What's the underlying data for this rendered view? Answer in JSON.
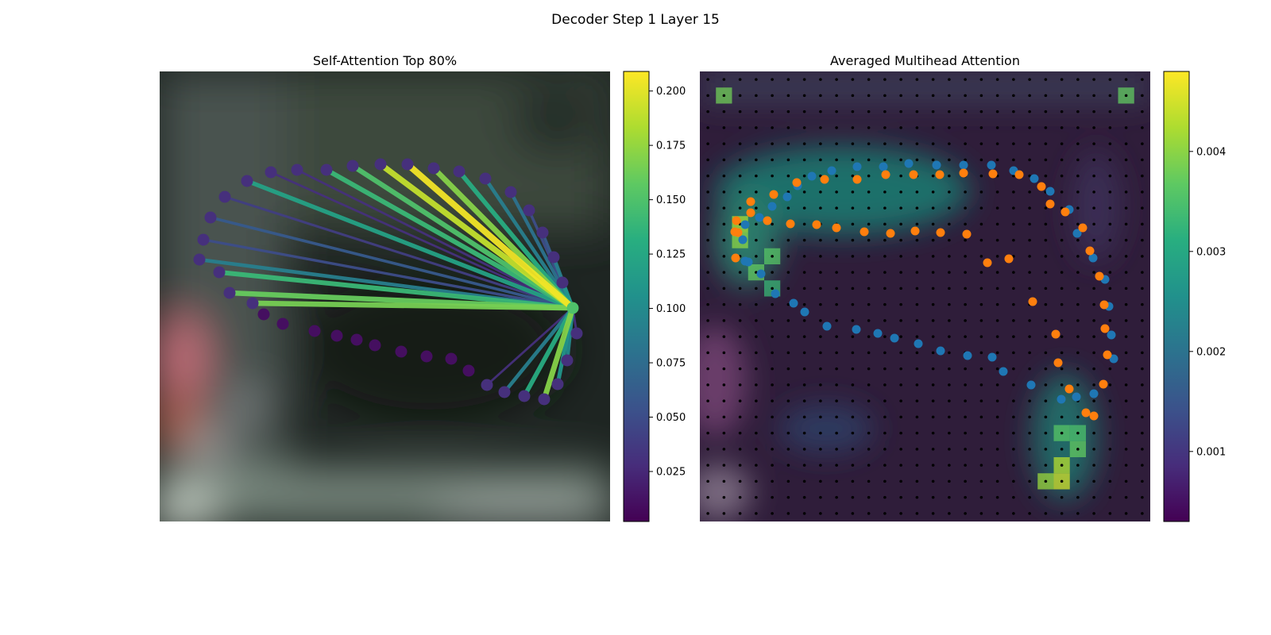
{
  "figure_title": "Decoder Step 1 Layer 15",
  "chart_data": [
    {
      "type": "network",
      "title": "Self-Attention Top 80%",
      "colorbar": {
        "colormap": "viridis",
        "range": [
          0.002,
          0.209
        ],
        "ticks": [
          0.025,
          0.05,
          0.075,
          0.1,
          0.125,
          0.15,
          0.175,
          0.2
        ],
        "tick_labels": [
          "0.025",
          "0.050",
          "0.075",
          "0.100",
          "0.125",
          "0.150",
          "0.175",
          "0.200"
        ]
      },
      "xlim": [
        0,
        567
      ],
      "ylim": [
        567,
        0
      ],
      "query_point": {
        "x": 520,
        "y": 298,
        "value": 0.15
      },
      "points": [
        {
          "x": 82,
          "y": 158,
          "weight": 0.04
        },
        {
          "x": 110,
          "y": 138,
          "weight": 0.12
        },
        {
          "x": 140,
          "y": 127,
          "weight": 0.03
        },
        {
          "x": 173,
          "y": 124,
          "weight": 0.03
        },
        {
          "x": 210,
          "y": 124,
          "weight": 0.14
        },
        {
          "x": 243,
          "y": 119,
          "weight": 0.15
        },
        {
          "x": 278,
          "y": 117,
          "weight": 0.19
        },
        {
          "x": 312,
          "y": 117,
          "weight": 0.205
        },
        {
          "x": 345,
          "y": 122,
          "weight": 0.17
        },
        {
          "x": 377,
          "y": 126,
          "weight": 0.13
        },
        {
          "x": 410,
          "y": 135,
          "weight": 0.09
        },
        {
          "x": 442,
          "y": 152,
          "weight": 0.08
        },
        {
          "x": 465,
          "y": 175,
          "weight": 0.05
        },
        {
          "x": 482,
          "y": 203,
          "weight": 0.06
        },
        {
          "x": 496,
          "y": 234,
          "weight": 0.09
        },
        {
          "x": 507,
          "y": 266,
          "weight": 0.11
        },
        {
          "x": 525,
          "y": 330,
          "weight": 0.03
        },
        {
          "x": 513,
          "y": 364,
          "weight": 0.1
        },
        {
          "x": 501,
          "y": 394,
          "weight": 0.11
        },
        {
          "x": 484,
          "y": 413,
          "weight": 0.17
        },
        {
          "x": 459,
          "y": 409,
          "weight": 0.13
        },
        {
          "x": 434,
          "y": 404,
          "weight": 0.09
        },
        {
          "x": 412,
          "y": 395,
          "weight": 0.03
        },
        {
          "x": 389,
          "y": 377,
          "weight": 0.01
        },
        {
          "x": 367,
          "y": 362,
          "weight": 0.01
        },
        {
          "x": 336,
          "y": 359,
          "weight": 0.01
        },
        {
          "x": 304,
          "y": 353,
          "weight": 0.01
        },
        {
          "x": 271,
          "y": 345,
          "weight": 0.01
        },
        {
          "x": 248,
          "y": 338,
          "weight": 0.01
        },
        {
          "x": 223,
          "y": 333,
          "weight": 0.01
        },
        {
          "x": 195,
          "y": 327,
          "weight": 0.01
        },
        {
          "x": 155,
          "y": 318,
          "weight": 0.01
        },
        {
          "x": 131,
          "y": 306,
          "weight": 0.01
        },
        {
          "x": 117,
          "y": 292,
          "weight": 0.165
        },
        {
          "x": 88,
          "y": 279,
          "weight": 0.16
        },
        {
          "x": 75,
          "y": 253,
          "weight": 0.14
        },
        {
          "x": 50,
          "y": 237,
          "weight": 0.09
        },
        {
          "x": 55,
          "y": 212,
          "weight": 0.05
        },
        {
          "x": 64,
          "y": 184,
          "weight": 0.06
        }
      ]
    },
    {
      "type": "heatmap",
      "title": "Averaged Multihead Attention",
      "colorbar": {
        "colormap": "viridis",
        "range": [
          0.0003,
          0.0048
        ],
        "ticks": [
          0.001,
          0.002,
          0.003,
          0.004
        ],
        "tick_labels": [
          "0.001",
          "0.002",
          "0.003",
          "0.004"
        ]
      },
      "grid_size": 28,
      "xlim": [
        0,
        567
      ],
      "ylim": [
        567,
        0
      ],
      "hotspots": [
        {
          "col": 1,
          "row": 1,
          "value": 0.0038
        },
        {
          "col": 26,
          "row": 1,
          "value": 0.0037
        },
        {
          "col": 2,
          "row": 9,
          "value": 0.0042
        },
        {
          "col": 2,
          "row": 10,
          "value": 0.004
        },
        {
          "col": 4,
          "row": 11,
          "value": 0.0036
        },
        {
          "col": 3,
          "row": 12,
          "value": 0.0037
        },
        {
          "col": 4,
          "row": 13,
          "value": 0.0033
        },
        {
          "col": 22,
          "row": 25,
          "value": 0.0045
        },
        {
          "col": 21,
          "row": 25,
          "value": 0.0041
        },
        {
          "col": 22,
          "row": 24,
          "value": 0.0043
        },
        {
          "col": 23,
          "row": 23,
          "value": 0.0037
        },
        {
          "col": 22,
          "row": 22,
          "value": 0.0036
        },
        {
          "col": 23,
          "row": 22,
          "value": 0.0035
        }
      ],
      "series": [
        {
          "name": "",
          "color": "#1f77b4",
          "points": [
            [
              54,
              212
            ],
            [
              57,
              193
            ],
            [
              75,
              184
            ],
            [
              91,
              170
            ],
            [
              110,
              158
            ],
            [
              123,
              144
            ],
            [
              141,
              132
            ],
            [
              166,
              125
            ],
            [
              198,
              120
            ],
            [
              231,
              120
            ],
            [
              263,
              116
            ],
            [
              298,
              118
            ],
            [
              332,
              118
            ],
            [
              367,
              118
            ],
            [
              395,
              125
            ],
            [
              421,
              135
            ],
            [
              441,
              151
            ],
            [
              465,
              174
            ],
            [
              475,
              204
            ],
            [
              495,
              235
            ],
            [
              510,
              262
            ],
            [
              515,
              296
            ],
            [
              518,
              332
            ],
            [
              521,
              362
            ],
            [
              496,
              406
            ],
            [
              474,
              410
            ],
            [
              455,
              413
            ],
            [
              417,
              395
            ],
            [
              382,
              378
            ],
            [
              368,
              360
            ],
            [
              337,
              358
            ],
            [
              303,
              352
            ],
            [
              275,
              343
            ],
            [
              245,
              336
            ],
            [
              224,
              330
            ],
            [
              197,
              325
            ],
            [
              160,
              321
            ],
            [
              132,
              303
            ],
            [
              118,
              292
            ],
            [
              95,
              280
            ],
            [
              77,
              255
            ],
            [
              61,
              240
            ],
            [
              57,
              239
            ]
          ]
        },
        {
          "name": "",
          "color": "#ff7f0e",
          "points": [
            [
              45,
              235
            ],
            [
              48,
              203
            ],
            [
              64,
              178
            ],
            [
              93,
              155
            ],
            [
              122,
              140
            ],
            [
              157,
              136
            ],
            [
              198,
              136
            ],
            [
              234,
              130
            ],
            [
              269,
              130
            ],
            [
              302,
              130
            ],
            [
              332,
              128
            ],
            [
              369,
              129
            ],
            [
              402,
              130
            ],
            [
              430,
              145
            ],
            [
              441,
              167
            ],
            [
              460,
              177
            ],
            [
              482,
              197
            ],
            [
              491,
              226
            ],
            [
              503,
              258
            ],
            [
              509,
              294
            ],
            [
              510,
              324
            ],
            [
              513,
              357
            ],
            [
              508,
              394
            ],
            [
              486,
              430
            ],
            [
              496,
              434
            ],
            [
              465,
              400
            ],
            [
              451,
              367
            ],
            [
              448,
              331
            ],
            [
              419,
              290
            ],
            [
              389,
              236
            ],
            [
              362,
              241
            ],
            [
              336,
              205
            ],
            [
              303,
              203
            ],
            [
              271,
              201
            ],
            [
              240,
              204
            ],
            [
              207,
              202
            ],
            [
              172,
              197
            ],
            [
              147,
              193
            ],
            [
              114,
              192
            ],
            [
              85,
              188
            ],
            [
              64,
              164
            ],
            [
              46,
              188
            ],
            [
              44,
              202
            ]
          ]
        }
      ]
    }
  ]
}
